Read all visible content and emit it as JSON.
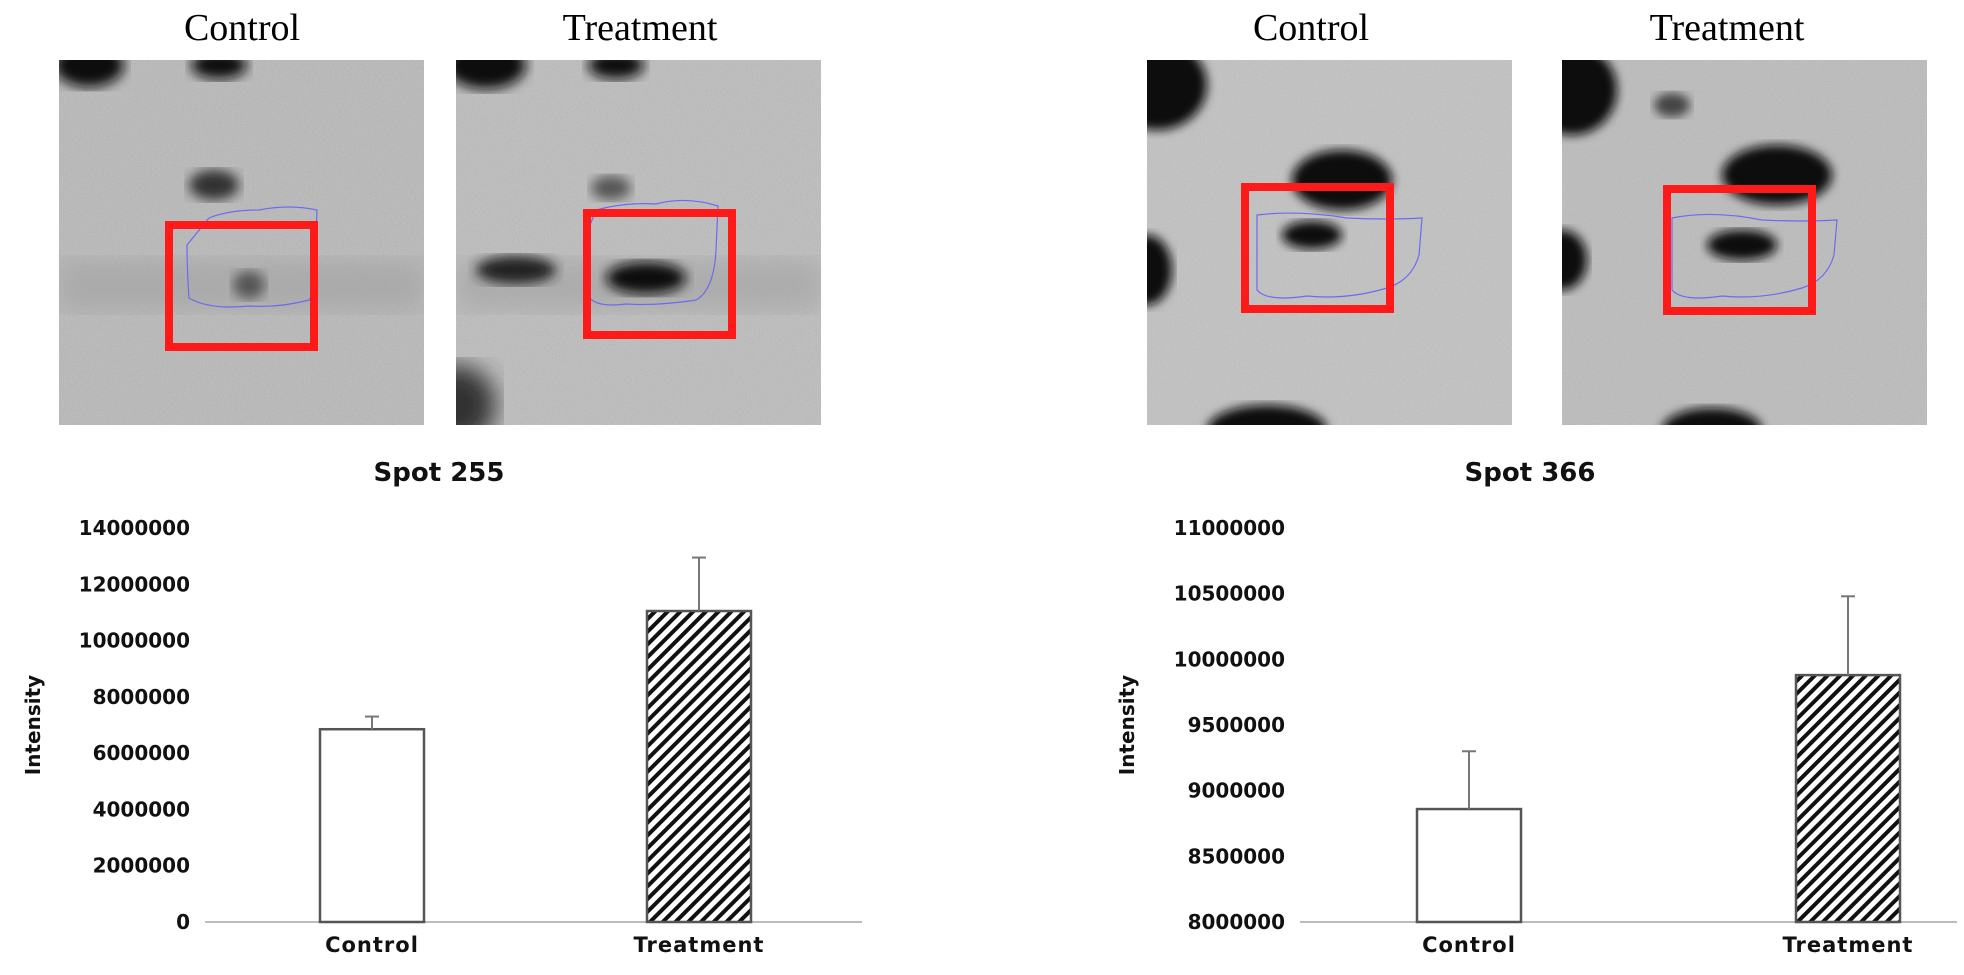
{
  "figures": [
    {
      "gels": [
        {
          "caption": "Control"
        },
        {
          "caption": "Treatment"
        }
      ]
    },
    {
      "gels": [
        {
          "caption": "Control"
        },
        {
          "caption": "Treatment"
        }
      ]
    }
  ],
  "colors": {
    "highlight_box": "#ff1a1a",
    "spot_outline": "#6b6bf0",
    "gel_background": "#bdbdbd",
    "bar_outline": "#555555",
    "axis_line": "#bbbbbb"
  },
  "chart_data": [
    {
      "type": "bar",
      "title": "Spot 255",
      "ylabel": "Intensity",
      "xlabel": "",
      "categories": [
        "Control",
        "Treatment"
      ],
      "values": [
        6850000,
        11050000
      ],
      "error_upper": [
        7300000,
        12950000
      ],
      "fills": [
        "solid-white",
        "diagonal-hatch"
      ],
      "ylim": [
        0,
        14000000
      ],
      "yticks": [
        0,
        2000000,
        4000000,
        6000000,
        8000000,
        10000000,
        12000000,
        14000000
      ],
      "ytick_labels": [
        "0",
        "2000000",
        "4000000",
        "6000000",
        "8000000",
        "10000000",
        "12000000",
        "14000000"
      ],
      "grid": false
    },
    {
      "type": "bar",
      "title": "Spot 366",
      "ylabel": "Intensity",
      "xlabel": "",
      "categories": [
        "Control",
        "Treatment"
      ],
      "values": [
        8860000,
        9880000
      ],
      "error_upper": [
        9300000,
        10480000
      ],
      "fills": [
        "solid-white",
        "diagonal-hatch"
      ],
      "ylim": [
        8000000,
        11000000
      ],
      "yticks": [
        8000000,
        8500000,
        9000000,
        9500000,
        10000000,
        10500000,
        11000000
      ],
      "ytick_labels": [
        "8000000",
        "8500000",
        "9000000",
        "9500000",
        "10000000",
        "10500000",
        "11000000"
      ],
      "grid": false
    }
  ]
}
